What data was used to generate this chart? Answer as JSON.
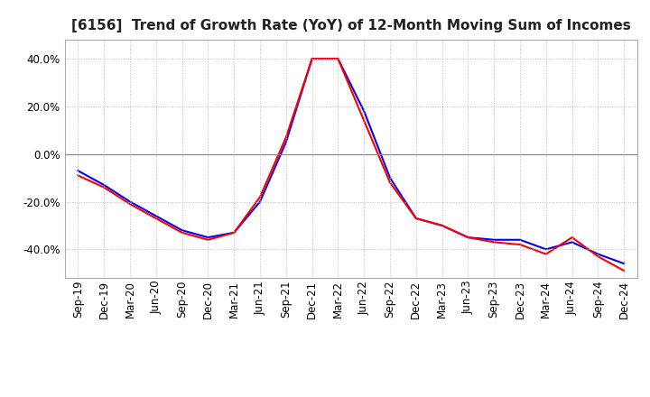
{
  "title": "[6156]  Trend of Growth Rate (YoY) of 12-Month Moving Sum of Incomes",
  "x_labels": [
    "Sep-19",
    "Dec-19",
    "Mar-20",
    "Jun-20",
    "Sep-20",
    "Dec-20",
    "Mar-21",
    "Jun-21",
    "Sep-21",
    "Dec-21",
    "Mar-22",
    "Jun-22",
    "Sep-22",
    "Dec-22",
    "Mar-23",
    "Jun-23",
    "Sep-23",
    "Dec-23",
    "Mar-24",
    "Jun-24",
    "Sep-24",
    "Dec-24"
  ],
  "ordinary_income": [
    -0.07,
    -0.13,
    -0.2,
    -0.26,
    -0.32,
    -0.35,
    -0.33,
    -0.2,
    0.05,
    0.4,
    0.4,
    0.18,
    -0.1,
    -0.27,
    -0.3,
    -0.35,
    -0.36,
    -0.36,
    -0.4,
    -0.37,
    -0.42,
    -0.46
  ],
  "net_income": [
    -0.09,
    -0.14,
    -0.21,
    -0.27,
    -0.33,
    -0.36,
    -0.33,
    -0.18,
    0.07,
    0.4,
    0.4,
    0.14,
    -0.12,
    -0.27,
    -0.3,
    -0.35,
    -0.37,
    -0.38,
    -0.42,
    -0.35,
    -0.43,
    -0.49
  ],
  "ordinary_color": "#0000ff",
  "net_color": "#ff0000",
  "background_color": "#ffffff",
  "plot_bg_color": "#ffffff",
  "grid_color": "#aaaaaa",
  "ylim": [
    -0.52,
    0.48
  ],
  "yticks": [
    -0.4,
    -0.2,
    0.0,
    0.2,
    0.4
  ],
  "line_width": 1.5,
  "title_fontsize": 11,
  "tick_fontsize": 8.5
}
